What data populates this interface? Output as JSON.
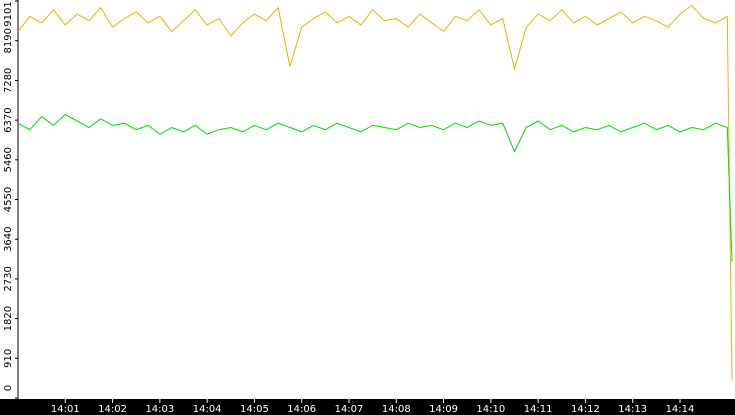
{
  "chart_data": {
    "type": "line",
    "x": [
      0,
      0.25,
      0.5,
      0.75,
      1,
      1.25,
      1.5,
      1.75,
      2,
      2.25,
      2.5,
      2.75,
      3,
      3.25,
      3.5,
      3.75,
      4,
      4.25,
      4.5,
      4.75,
      5,
      5.25,
      5.5,
      5.75,
      6,
      6.25,
      6.5,
      6.75,
      7,
      7.25,
      7.5,
      7.75,
      8,
      8.25,
      8.5,
      8.75,
      9,
      9.25,
      9.5,
      9.75,
      10,
      10.25,
      10.5,
      10.75,
      11,
      11.25,
      11.5,
      11.75,
      12,
      12.25,
      12.5,
      12.75,
      13,
      13.25,
      13.5,
      13.75,
      14,
      14.25,
      14.5,
      14.75,
      15,
      15.1
    ],
    "series": [
      {
        "color": "#f0b400",
        "values": [
          8400,
          8750,
          8600,
          8900,
          8550,
          8800,
          8650,
          8950,
          8500,
          8700,
          8850,
          8600,
          8750,
          8400,
          8650,
          8900,
          8550,
          8700,
          8300,
          8600,
          8800,
          8650,
          8950,
          7600,
          8500,
          8700,
          8850,
          8600,
          8750,
          8550,
          8900,
          8650,
          8700,
          8500,
          8800,
          8600,
          8400,
          8750,
          8650,
          8900,
          8550,
          8700,
          7550,
          8500,
          8800,
          8650,
          8900,
          8600,
          8750,
          8550,
          8700,
          8850,
          8600,
          8750,
          8650,
          8500,
          8800,
          9000,
          8700,
          8600,
          8750,
          400
        ]
      },
      {
        "color": "#00e000",
        "values": [
          6300,
          6150,
          6450,
          6250,
          6500,
          6350,
          6200,
          6400,
          6250,
          6300,
          6150,
          6250,
          6050,
          6200,
          6100,
          6250,
          6050,
          6150,
          6200,
          6100,
          6250,
          6150,
          6300,
          6200,
          6100,
          6250,
          6150,
          6300,
          6200,
          6100,
          6250,
          6200,
          6150,
          6300,
          6200,
          6250,
          6150,
          6300,
          6200,
          6350,
          6250,
          6300,
          5650,
          6200,
          6350,
          6150,
          6250,
          6100,
          6200,
          6150,
          6250,
          6100,
          6200,
          6300,
          6150,
          6250,
          6100,
          6200,
          6150,
          6300,
          6200,
          3130
        ]
      }
    ],
    "xlim": [
      0,
      15.1
    ],
    "xticks": [
      {
        "value": 1,
        "label": "14:01"
      },
      {
        "value": 2,
        "label": "14:02"
      },
      {
        "value": 3,
        "label": "14:03"
      },
      {
        "value": 4,
        "label": "14:04"
      },
      {
        "value": 5,
        "label": "14:05"
      },
      {
        "value": 6,
        "label": "14:06"
      },
      {
        "value": 7,
        "label": "14:07"
      },
      {
        "value": 8,
        "label": "14:08"
      },
      {
        "value": 9,
        "label": "14:09"
      },
      {
        "value": 10,
        "label": "14:10"
      },
      {
        "value": 11,
        "label": "14:11"
      },
      {
        "value": 12,
        "label": "14:12"
      },
      {
        "value": 13,
        "label": "14:13"
      },
      {
        "value": 14,
        "label": "14:14"
      }
    ],
    "ylim": [
      0,
      9101
    ],
    "yticks": [
      0,
      910,
      1820,
      2730,
      3640,
      4550,
      5460,
      6370,
      7280,
      8190,
      9101
    ]
  }
}
